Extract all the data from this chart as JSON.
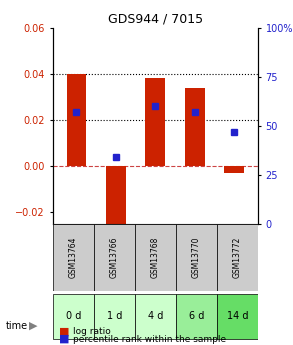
{
  "title": "GDS944 / 7015",
  "samples": [
    "GSM13764",
    "GSM13766",
    "GSM13768",
    "GSM13770",
    "GSM13772"
  ],
  "time_labels": [
    "0 d",
    "1 d",
    "4 d",
    "6 d",
    "14 d"
  ],
  "log_ratios": [
    0.04,
    -0.025,
    0.038,
    0.034,
    -0.003
  ],
  "percentile_ranks": [
    0.57,
    0.34,
    0.6,
    0.57,
    0.47
  ],
  "bar_color": "#cc2200",
  "dot_color": "#2222cc",
  "ylim_left": [
    -0.025,
    0.06
  ],
  "ylim_right": [
    0,
    100
  ],
  "yticks_left": [
    -0.02,
    0,
    0.02,
    0.04,
    0.06
  ],
  "yticks_right": [
    0,
    25,
    50,
    75,
    100
  ],
  "hline_dotted": [
    0.02,
    0.04
  ],
  "hline_dashed": 0.0,
  "time_colors": [
    "#ccffcc",
    "#ccffcc",
    "#ccffcc",
    "#99ee99",
    "#66dd66"
  ],
  "gsm_bg_color": "#cccccc",
  "bar_width": 0.5,
  "legend_log_color": "#cc2200",
  "legend_pct_color": "#2222cc"
}
